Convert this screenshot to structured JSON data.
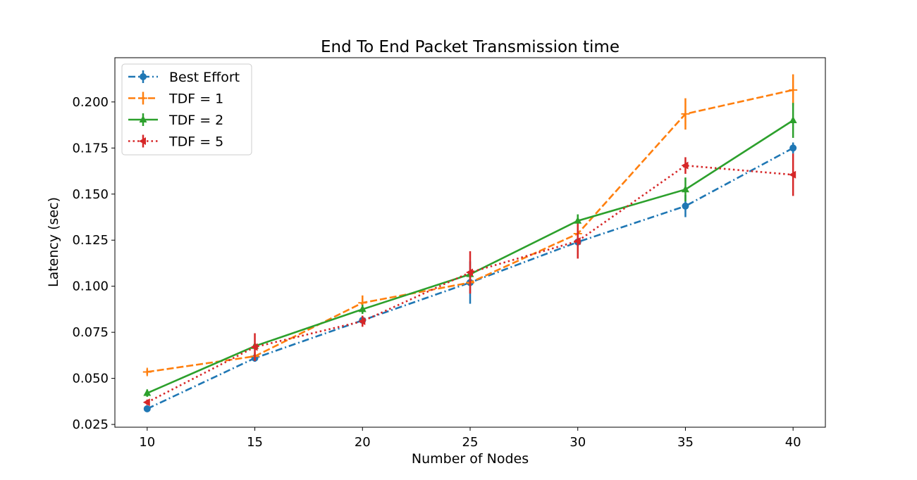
{
  "chart_data": {
    "type": "line",
    "title": "End To End Packet Transmission time",
    "xlabel": "Number of Nodes",
    "ylabel": "Latency (sec)",
    "xlim": [
      8.5,
      41.5
    ],
    "ylim": [
      0.0235,
      0.224
    ],
    "x": [
      10,
      15,
      20,
      25,
      30,
      35,
      40
    ],
    "xticks": [
      10,
      15,
      20,
      25,
      30,
      35,
      40
    ],
    "yticks": [
      0.025,
      0.05,
      0.075,
      0.1,
      0.125,
      0.15,
      0.175,
      0.2
    ],
    "ytick_labels": [
      "0.025",
      "0.050",
      "0.075",
      "0.100",
      "0.125",
      "0.150",
      "0.175",
      "0.200"
    ],
    "grid": false,
    "legend_position": "top-left",
    "series": [
      {
        "name": "Best Effort",
        "color": "#1f77b4",
        "linestyle": "dashdot",
        "marker": "circle",
        "values": [
          0.0335,
          0.061,
          0.0815,
          0.102,
          0.124,
          0.1435,
          0.175
        ],
        "errors": [
          0.0015,
          0.002,
          0.002,
          0.0115,
          0.0025,
          0.006,
          0.003
        ]
      },
      {
        "name": "TDF = 1",
        "color": "#ff7f0e",
        "linestyle": "dashed",
        "marker": "plus",
        "values": [
          0.0535,
          0.062,
          0.091,
          0.102,
          0.1285,
          0.1935,
          0.2065
        ],
        "errors": [
          0.0015,
          0.002,
          0.004,
          0.002,
          0.003,
          0.0085,
          0.0085
        ]
      },
      {
        "name": "TDF = 2",
        "color": "#2ca02c",
        "linestyle": "solid",
        "marker": "triangle-up",
        "values": [
          0.042,
          0.0675,
          0.0875,
          0.1065,
          0.1355,
          0.1525,
          0.19
        ],
        "errors": [
          0.002,
          0.0015,
          0.0025,
          0.002,
          0.0035,
          0.0065,
          0.0095
        ]
      },
      {
        "name": "TDF = 5",
        "color": "#d62728",
        "linestyle": "dotted",
        "marker": "triangle-left",
        "values": [
          0.037,
          0.067,
          0.081,
          0.1075,
          0.1245,
          0.1655,
          0.1605
        ],
        "errors": [
          0.0015,
          0.0075,
          0.003,
          0.0115,
          0.0095,
          0.0045,
          0.0115
        ]
      }
    ]
  }
}
